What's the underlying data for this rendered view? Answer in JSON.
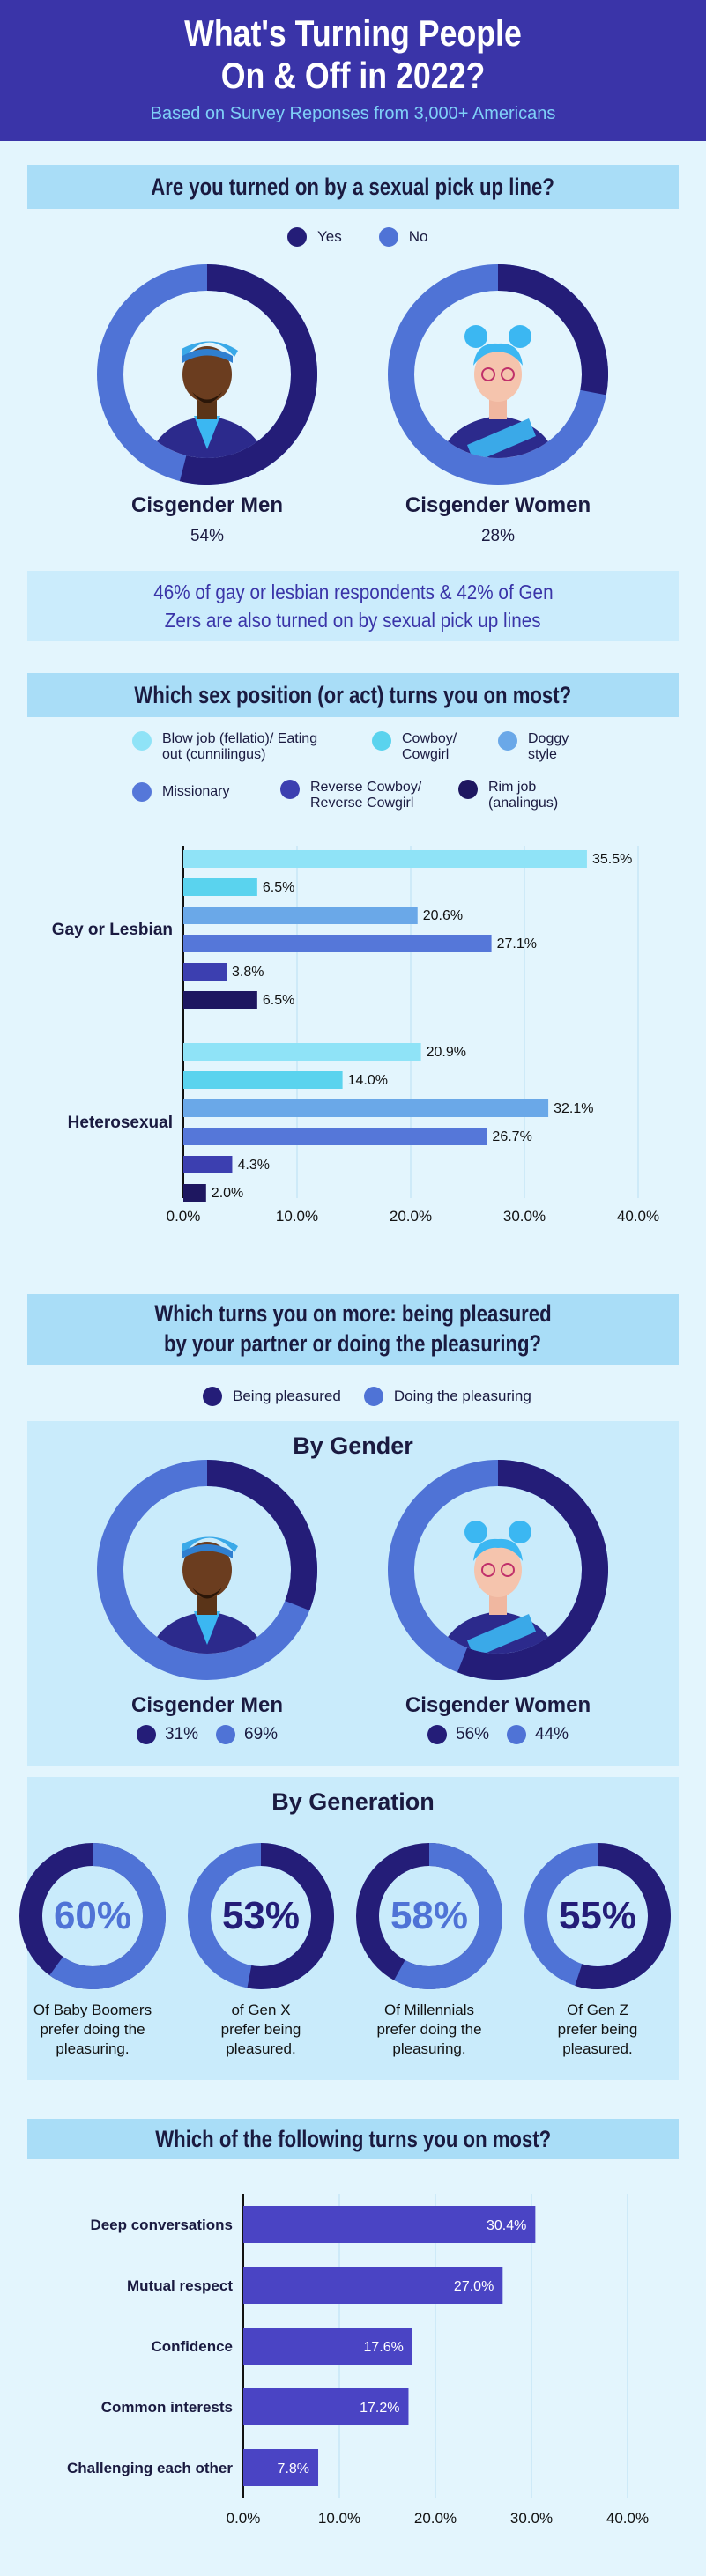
{
  "header": {
    "title_line1": "What's Turning People",
    "title_line2": "On & Off in 2022?",
    "subtitle": "Based on Survey Reponses from 3,000+ Americans"
  },
  "colors": {
    "dark": "#241d78",
    "mid": "#4f73d6",
    "light": "#8fe3f7",
    "cyan": "#5ad3ee",
    "sky": "#6aa8e8",
    "steel": "#5577d9",
    "indigo": "#3c3fb0",
    "navy": "#1e1760"
  },
  "section1": {
    "title": "Are you turned on by a sexual pick up line?",
    "legend": [
      {
        "label": "Yes",
        "color": "#241d78"
      },
      {
        "label": "No",
        "color": "#4f73d6"
      }
    ],
    "men": {
      "label": "Cisgender Men",
      "value_text": "54%",
      "yes": 54
    },
    "women": {
      "label": "Cisgender Women",
      "value_text": "28%",
      "yes": 28
    },
    "callout_line1": "46% of gay or lesbian respondents & 42% of Gen",
    "callout_line2": "Zers are also turned on by sexual pick up lines"
  },
  "section2": {
    "title": "Which sex position (or act) turns you on most?",
    "legend": [
      {
        "label1": "Blow job (fellatio)/ Eating",
        "label2": "out (cunnilingus)",
        "color": "#8fe3f7"
      },
      {
        "label1": "Cowboy/",
        "label2": "Cowgirl",
        "color": "#5ad3ee"
      },
      {
        "label1": "Doggy",
        "label2": "style",
        "color": "#6aa8e8"
      },
      {
        "label1": "Missionary",
        "label2": "",
        "color": "#5577d9"
      },
      {
        "label1": "Reverse Cowboy/",
        "label2": "Reverse Cowgirl",
        "color": "#3c3fb0"
      },
      {
        "label1": "Rim job",
        "label2": "(analingus)",
        "color": "#1e1760"
      }
    ]
  },
  "section3": {
    "title_line1": "Which turns you on more: being pleasured",
    "title_line2": "by your partner or doing the pleasuring?",
    "legend": [
      {
        "label": "Being pleasured",
        "color": "#241d78"
      },
      {
        "label": "Doing the pleasuring",
        "color": "#4f73d6"
      }
    ],
    "by_gender_title": "By Gender",
    "men": {
      "label": "Cisgender Men",
      "pleasured": 31,
      "pleasuring": 69,
      "p1": "31%",
      "p2": "69%"
    },
    "women": {
      "label": "Cisgender Women",
      "pleasured": 56,
      "pleasuring": 44,
      "p1": "56%",
      "p2": "44%"
    },
    "by_generation_title": "By Generation",
    "generations": [
      {
        "pct": "60%",
        "value": 60,
        "mode": "pleasuring",
        "line1": "Of Baby Boomers",
        "line2": "prefer doing the",
        "line3": "pleasuring."
      },
      {
        "pct": "53%",
        "value": 53,
        "mode": "pleasured",
        "line1": "of Gen X",
        "line2": "prefer being",
        "line3": "pleasured."
      },
      {
        "pct": "58%",
        "value": 58,
        "mode": "pleasuring",
        "line1": "Of Millennials",
        "line2": "prefer doing the",
        "line3": "pleasuring."
      },
      {
        "pct": "55%",
        "value": 55,
        "mode": "pleasured",
        "line1": "Of Gen Z",
        "line2": "prefer being",
        "line3": "pleasured."
      }
    ]
  },
  "section4": {
    "title": "Which of the following turns you on most?"
  },
  "chart_data": [
    {
      "type": "bar",
      "orientation": "horizontal",
      "categories": [
        "Gay or Lesbian",
        "Heterosexual"
      ],
      "series": [
        {
          "name": "Blow job (fellatio)/ Eating out (cunnilingus)",
          "values": [
            35.5,
            20.9
          ],
          "labels": [
            "35.5%",
            "20.9%"
          ]
        },
        {
          "name": "Cowboy/ Cowgirl",
          "values": [
            6.5,
            14.0
          ],
          "labels": [
            "6.5%",
            "14.0%"
          ]
        },
        {
          "name": "Doggy style",
          "values": [
            20.6,
            32.1
          ],
          "labels": [
            "20.6%",
            "32.1%"
          ]
        },
        {
          "name": "Missionary",
          "values": [
            27.1,
            26.7
          ],
          "labels": [
            "27.1%",
            "26.7%"
          ]
        },
        {
          "name": "Reverse Cowboy/ Reverse Cowgirl",
          "values": [
            3.8,
            4.3
          ],
          "labels": [
            "3.8%",
            "4.3%"
          ]
        },
        {
          "name": "Rim job (analingus)",
          "values": [
            6.5,
            2.0
          ],
          "labels": [
            "6.5%",
            "2.0%"
          ]
        }
      ],
      "xlim": [
        0,
        40
      ],
      "xticks": [
        "0.0%",
        "10.0%",
        "20.0%",
        "30.0%",
        "40.0%"
      ],
      "grid": true
    },
    {
      "type": "bar",
      "orientation": "horizontal",
      "categories": [
        "Deep conversations",
        "Mutual respect",
        "Confidence",
        "Common interests",
        "Challenging each other"
      ],
      "values": [
        30.4,
        27.0,
        17.6,
        17.2,
        7.8
      ],
      "labels": [
        "30.4%",
        "27.0%",
        "17.6%",
        "17.2%",
        "7.8%"
      ],
      "color": "#4a44c4",
      "xlim": [
        0,
        40
      ],
      "xticks": [
        "0.0%",
        "10.0%",
        "20.0%",
        "30.0%",
        "40.0%"
      ],
      "grid": true
    }
  ]
}
